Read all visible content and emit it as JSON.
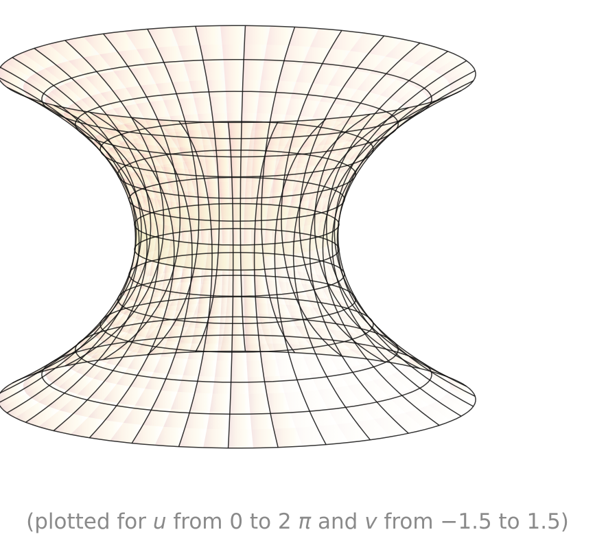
{
  "surface": {
    "type": "parametric-3d-surface",
    "shape": "catenoid",
    "parameters": {
      "u": {
        "from": 0,
        "to": 6.283185307179586
      },
      "v": {
        "from": -1.5,
        "to": 1.5
      }
    },
    "mesh_lines": {
      "u": 30,
      "v": 13
    },
    "mesh_color": "#111111",
    "colors": {
      "warm_left": "#e79a98",
      "mid_orange": "#f8c8a0",
      "mid_yellow": "#fbeeb4",
      "pale_right": "#f4f2e6",
      "shadow": "#a99c8c",
      "dark": "#6b5a5a"
    }
  },
  "caption": {
    "open": "(plotted for ",
    "u_var": "u",
    "from_u": " from 0 to 2 ",
    "pi": "π",
    "and": " and ",
    "v_var": "v",
    "from_v": " from −1.5 to 1.5)"
  }
}
